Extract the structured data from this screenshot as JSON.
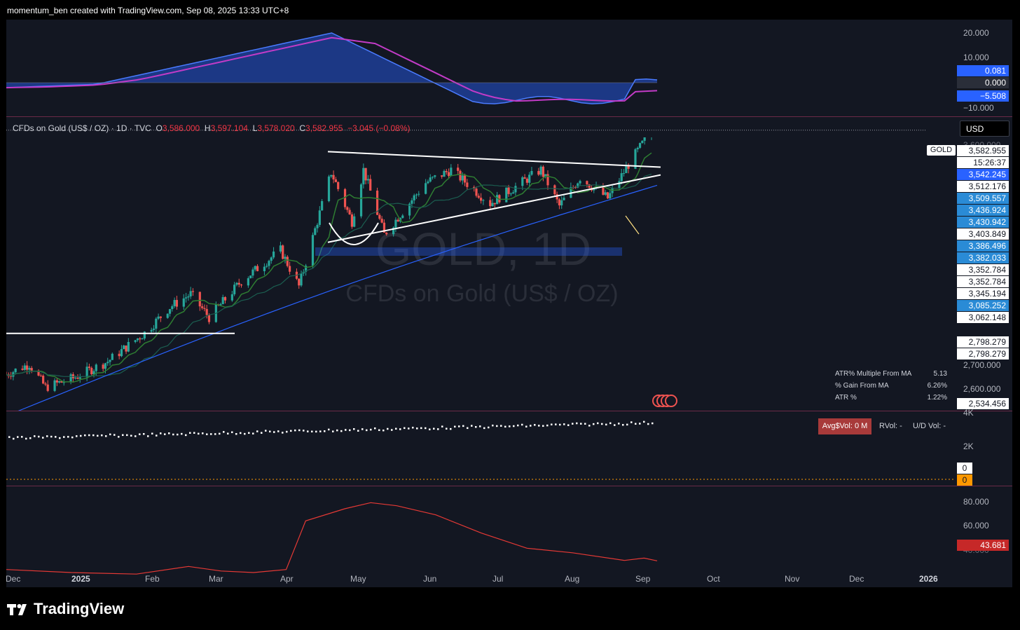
{
  "header": {
    "credit": "momentum_ben created with TradingView.com, Sep 08, 2025 13:33 UTC+8"
  },
  "legend": {
    "symbol": "CFDs on Gold (US$ / OZ) · 1D · TVC",
    "o_label": "O",
    "o": "3,586.000",
    "h_label": "H",
    "h": "3,597.104",
    "l_label": "L",
    "l": "3,578.020",
    "c_label": "C",
    "c": "3,582.955",
    "change": "−3.045 (−0.08%)"
  },
  "currency_button": "USD",
  "watermark": {
    "line1": "GOLD, 1D",
    "line2": "CFDs on Gold (US$ / OZ)"
  },
  "symbol_tag": "GOLD",
  "oscillator": {
    "axis": [
      "20.000",
      "10.000",
      "−10.000"
    ],
    "badges": [
      {
        "value": "0.081",
        "style": "b"
      },
      {
        "value": "0.000",
        "style": "dk"
      },
      {
        "value": "−5.508",
        "style": "b"
      }
    ]
  },
  "price_axis": {
    "labels": [
      "3,600.000",
      "2,700.000",
      "2,600.000"
    ],
    "badges": [
      {
        "value": "3,582.955",
        "style": "w"
      },
      {
        "value": "15:26:37",
        "style": "w"
      },
      {
        "value": "3,542.245",
        "style": "b"
      },
      {
        "value": "3,512.176",
        "style": "w"
      },
      {
        "value": "3,509.557",
        "style": "lb"
      },
      {
        "value": "3,436.924",
        "style": "lb"
      },
      {
        "value": "3,430.942",
        "style": "lb"
      },
      {
        "value": "3,403.849",
        "style": "w"
      },
      {
        "value": "3,386.496",
        "style": "lb"
      },
      {
        "value": "3,382.033",
        "style": "lb"
      },
      {
        "value": "3,352.784",
        "style": "w"
      },
      {
        "value": "3,352.784",
        "style": "w"
      },
      {
        "value": "3,345.194",
        "style": "w"
      },
      {
        "value": "3,085.252",
        "style": "lb"
      },
      {
        "value": "3,062.148",
        "style": "w"
      },
      {
        "value": "2,798.279",
        "style": "w"
      },
      {
        "value": "2,798.279",
        "style": "w"
      },
      {
        "value": "2,534.456",
        "style": "w"
      }
    ]
  },
  "stats_table": [
    {
      "label": "ATR% Multiple From MA",
      "value": "5.13"
    },
    {
      "label": "% Gain From MA",
      "value": "6.26%"
    },
    {
      "label": "ATR %",
      "value": "1.22%"
    }
  ],
  "volume_panel": {
    "avg_vol": "Avg$Vol: 0 M",
    "rvol": "RVol: -",
    "ud_vol": "U/D Vol: -",
    "axis": [
      "4K",
      "2K"
    ],
    "badge_zero_white": "0",
    "badge_zero_orange": "0"
  },
  "rsi_panel": {
    "axis": [
      "80.000",
      "60.000",
      "40.000"
    ],
    "badge": "43.681"
  },
  "time_axis": [
    {
      "label": "Dec",
      "bold": false
    },
    {
      "label": "2025",
      "bold": true
    },
    {
      "label": "Feb",
      "bold": false
    },
    {
      "label": "Mar",
      "bold": false
    },
    {
      "label": "Apr",
      "bold": false
    },
    {
      "label": "May",
      "bold": false
    },
    {
      "label": "Jun",
      "bold": false
    },
    {
      "label": "Jul",
      "bold": false
    },
    {
      "label": "Aug",
      "bold": false
    },
    {
      "label": "Sep",
      "bold": false
    },
    {
      "label": "Oct",
      "bold": false
    },
    {
      "label": "Nov",
      "bold": false
    },
    {
      "label": "Dec",
      "bold": false
    },
    {
      "label": "2026",
      "bold": true
    }
  ],
  "footer": {
    "brand": "TradingView"
  },
  "colors": {
    "up": "#26a69a",
    "down": "#ef5350",
    "ma_long": "#2962ff",
    "rsi": "#e53935",
    "osc_a": "#2962ff",
    "osc_b": "#c23bc7"
  },
  "chart_data": {
    "type": "candlestick",
    "title": "CFDs on Gold (US$ / OZ) · 1D · TVC",
    "ylim": [
      2500,
      3620
    ],
    "x_range": [
      "2024-12-01",
      "2026-01-31"
    ],
    "price_path": [
      {
        "x": "2024-12-02",
        "close": 2640
      },
      {
        "x": "2024-12-12",
        "close": 2680
      },
      {
        "x": "2024-12-19",
        "close": 2590
      },
      {
        "x": "2024-12-31",
        "close": 2625
      },
      {
        "x": "2025-01-15",
        "close": 2690
      },
      {
        "x": "2025-01-31",
        "close": 2800
      },
      {
        "x": "2025-02-11",
        "close": 2900
      },
      {
        "x": "2025-02-20",
        "close": 2950
      },
      {
        "x": "2025-02-28",
        "close": 2860
      },
      {
        "x": "2025-03-14",
        "close": 3000
      },
      {
        "x": "2025-03-31",
        "close": 3120
      },
      {
        "x": "2025-04-08",
        "close": 2980
      },
      {
        "x": "2025-04-22",
        "close": 3420
      },
      {
        "x": "2025-05-01",
        "close": 3230
      },
      {
        "x": "2025-05-06",
        "close": 3430
      },
      {
        "x": "2025-05-15",
        "close": 3180
      },
      {
        "x": "2025-06-02",
        "close": 3380
      },
      {
        "x": "2025-06-13",
        "close": 3430
      },
      {
        "x": "2025-06-30",
        "close": 3300
      },
      {
        "x": "2025-07-22",
        "close": 3430
      },
      {
        "x": "2025-07-30",
        "close": 3290
      },
      {
        "x": "2025-08-08",
        "close": 3400
      },
      {
        "x": "2025-08-20",
        "close": 3320
      },
      {
        "x": "2025-08-29",
        "close": 3450
      },
      {
        "x": "2025-09-08",
        "close": 3582.955
      }
    ],
    "horizontal_line": 2798.279,
    "trendlines": [
      {
        "from": [
          "2025-04-17",
          3500
        ],
        "to": [
          "2025-09-09",
          3440
        ]
      },
      {
        "from": [
          "2025-04-17",
          3150
        ],
        "to": [
          "2025-09-09",
          3410
        ]
      }
    ]
  }
}
